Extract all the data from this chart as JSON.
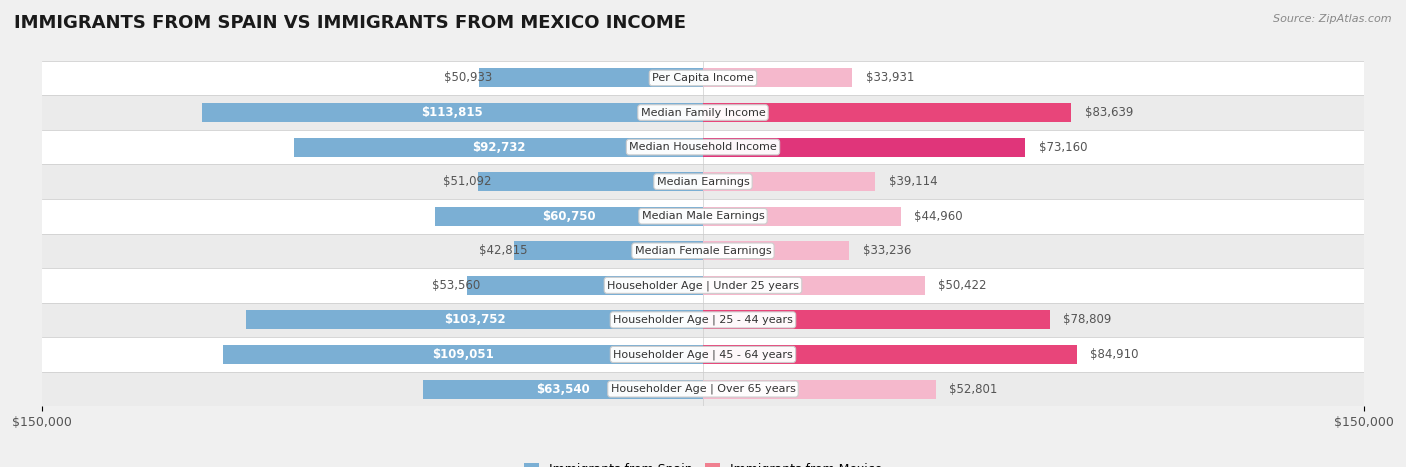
{
  "title": "IMMIGRANTS FROM SPAIN VS IMMIGRANTS FROM MEXICO INCOME",
  "source": "Source: ZipAtlas.com",
  "categories": [
    "Per Capita Income",
    "Median Family Income",
    "Median Household Income",
    "Median Earnings",
    "Median Male Earnings",
    "Median Female Earnings",
    "Householder Age | Under 25 years",
    "Householder Age | 25 - 44 years",
    "Householder Age | 45 - 64 years",
    "Householder Age | Over 65 years"
  ],
  "spain_values": [
    50933,
    113815,
    92732,
    51092,
    60750,
    42815,
    53560,
    103752,
    109051,
    63540
  ],
  "mexico_values": [
    33931,
    83639,
    73160,
    39114,
    44960,
    33236,
    50422,
    78809,
    84910,
    52801
  ],
  "spain_labels": [
    "$50,933",
    "$113,815",
    "$92,732",
    "$51,092",
    "$60,750",
    "$42,815",
    "$53,560",
    "$103,752",
    "$109,051",
    "$63,540"
  ],
  "mexico_labels": [
    "$33,931",
    "$83,639",
    "$73,160",
    "$39,114",
    "$44,960",
    "$33,236",
    "$50,422",
    "$78,809",
    "$84,910",
    "$52,801"
  ],
  "spain_color": "#7bafd4",
  "mexico_colors": [
    "#f5b8cc",
    "#e8457a",
    "#e0357a",
    "#f5b8cc",
    "#f5b8cc",
    "#f5b8cc",
    "#f5b8cc",
    "#e8457a",
    "#e8457a",
    "#f5b8cc"
  ],
  "bar_height": 0.55,
  "max_value": 150000,
  "background_color": "#f0f0f0",
  "legend_spain": "Immigrants from Spain",
  "legend_mexico": "Immigrants from Mexico",
  "title_fontsize": 13,
  "label_fontsize": 8.5,
  "category_fontsize": 8.0,
  "inside_threshold": 55000
}
